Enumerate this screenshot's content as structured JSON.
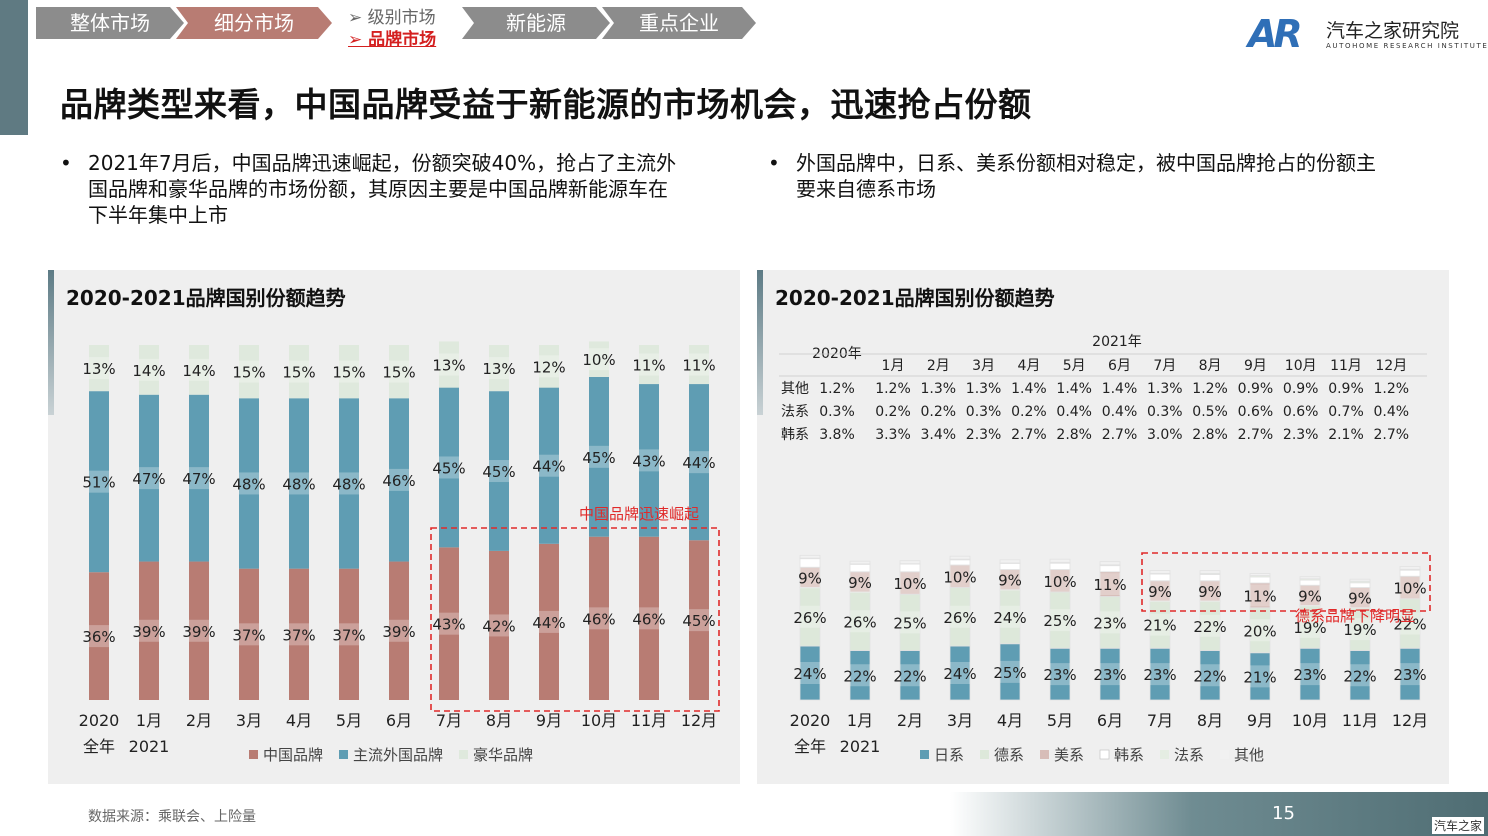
{
  "nav": {
    "tabs": [
      {
        "label": "整体市场",
        "color": "#8c8c8c"
      },
      {
        "label": "细分市场",
        "color": "#b87c73"
      },
      {
        "label": "新能源",
        "color": "#8c8c8c"
      },
      {
        "label": "重点企业",
        "color": "#8c8c8c"
      }
    ],
    "sub": [
      {
        "label": "➢ 级别市场",
        "active": false
      },
      {
        "label": "➢ 品牌市场",
        "active": true
      }
    ]
  },
  "logo": {
    "mark": "AR",
    "name": "汽车之家研究院",
    "subtitle": "AUTOHOME RESEARCH INSTITUTE"
  },
  "title": "品牌类型来看，中国品牌受益于新能源的市场机会，迅速抢占份额",
  "bullets": {
    "left": {
      "dot": "•",
      "lines": [
        "2021年7月后，中国品牌迅速崛起，份额突破40%，抢占了主流外",
        "国品牌和豪华品牌的市场份额，其原因主要是中国品牌新能源车在",
        "下半年集中上市"
      ]
    },
    "right": {
      "dot": "•",
      "lines": [
        "外国品牌中，日系、美系份额相对稳定，被中国品牌抢占的份额主",
        "要来自德系市场"
      ]
    }
  },
  "chart_data": [
    {
      "type": "bar",
      "stacked": true,
      "title": "2020-2021品牌国别份额趋势",
      "categories": [
        "2020",
        "1月",
        "2月",
        "3月",
        "4月",
        "5月",
        "6月",
        "7月",
        "8月",
        "9月",
        "10月",
        "11月",
        "12月"
      ],
      "category_sublabels": {
        "2020": "全年",
        "1月": "2021"
      },
      "series": [
        {
          "name": "中国品牌",
          "color": "#b87c73",
          "values": [
            36,
            39,
            39,
            37,
            37,
            37,
            39,
            43,
            42,
            44,
            46,
            46,
            45
          ]
        },
        {
          "name": "主流外国品牌",
          "color": "#5f9db3",
          "values": [
            51,
            47,
            47,
            48,
            48,
            48,
            46,
            45,
            45,
            44,
            45,
            43,
            44
          ]
        },
        {
          "name": "豪华品牌",
          "color": "#dfe9dd",
          "values": [
            13,
            14,
            14,
            15,
            15,
            15,
            15,
            13,
            13,
            12,
            10,
            11,
            11
          ]
        }
      ],
      "annotation": {
        "text": "中国品牌迅速崛起",
        "from": "7月",
        "to": "12月"
      },
      "ylim": [
        0,
        100
      ]
    },
    {
      "type": "bar",
      "stacked": true,
      "title": "2020-2021品牌国别份额趋势",
      "categories": [
        "2020",
        "1月",
        "2月",
        "3月",
        "4月",
        "5月",
        "6月",
        "7月",
        "8月",
        "9月",
        "10月",
        "11月",
        "12月"
      ],
      "category_sublabels": {
        "2020": "全年",
        "1月": "2021"
      },
      "series": [
        {
          "name": "日系",
          "color": "#5f9db3",
          "values": [
            24,
            22,
            22,
            24,
            25,
            23,
            23,
            23,
            22,
            21,
            23,
            22,
            23
          ]
        },
        {
          "name": "德系",
          "color": "#dde8da",
          "values": [
            26,
            26,
            25,
            26,
            24,
            25,
            23,
            21,
            22,
            20,
            19,
            19,
            22
          ]
        },
        {
          "name": "美系",
          "color": "#d7bdb8",
          "values": [
            9,
            9,
            10,
            10,
            9,
            10,
            11,
            9,
            9,
            11,
            9,
            9,
            10
          ]
        },
        {
          "name": "韩系",
          "color": "#ffffff",
          "values": [
            3.8,
            3.3,
            3.4,
            2.3,
            2.7,
            2.8,
            2.7,
            3.0,
            2.8,
            2.7,
            2.3,
            2.1,
            2.7
          ]
        },
        {
          "name": "法系",
          "color": "#e5ede3",
          "values": [
            0.3,
            0.2,
            0.2,
            0.3,
            0.2,
            0.4,
            0.4,
            0.3,
            0.5,
            0.6,
            0.6,
            0.7,
            0.4
          ]
        },
        {
          "name": "其他",
          "color": "#f1f1f1",
          "values": [
            1.2,
            1.2,
            1.3,
            1.3,
            1.4,
            1.4,
            1.4,
            1.3,
            1.2,
            0.9,
            0.9,
            0.9,
            1.2
          ]
        }
      ],
      "annotation": {
        "text": "德系品牌下降明显",
        "from": "7月",
        "to": "12月"
      },
      "table": {
        "group_headers": {
          "first": "2020年",
          "rest": "2021年"
        },
        "columns": [
          "",
          "1月",
          "2月",
          "3月",
          "4月",
          "5月",
          "6月",
          "7月",
          "8月",
          "9月",
          "10月",
          "11月",
          "12月"
        ],
        "rows": [
          {
            "label": "其他",
            "values": [
              "1.2%",
              "1.2%",
              "1.3%",
              "1.3%",
              "1.4%",
              "1.4%",
              "1.4%",
              "1.3%",
              "1.2%",
              "0.9%",
              "0.9%",
              "0.9%",
              "1.2%"
            ]
          },
          {
            "label": "法系",
            "values": [
              "0.3%",
              "0.2%",
              "0.2%",
              "0.3%",
              "0.2%",
              "0.4%",
              "0.4%",
              "0.3%",
              "0.5%",
              "0.6%",
              "0.6%",
              "0.7%",
              "0.4%"
            ]
          },
          {
            "label": "韩系",
            "values": [
              "3.8%",
              "3.3%",
              "3.4%",
              "2.3%",
              "2.7%",
              "2.8%",
              "2.7%",
              "3.0%",
              "2.8%",
              "2.7%",
              "2.3%",
              "2.1%",
              "2.7%"
            ]
          }
        ]
      },
      "ylim": [
        0,
        100
      ]
    }
  ],
  "footer": {
    "source": "数据来源：乘联会、上险量",
    "page": "15",
    "watermark": "汽车之家"
  }
}
